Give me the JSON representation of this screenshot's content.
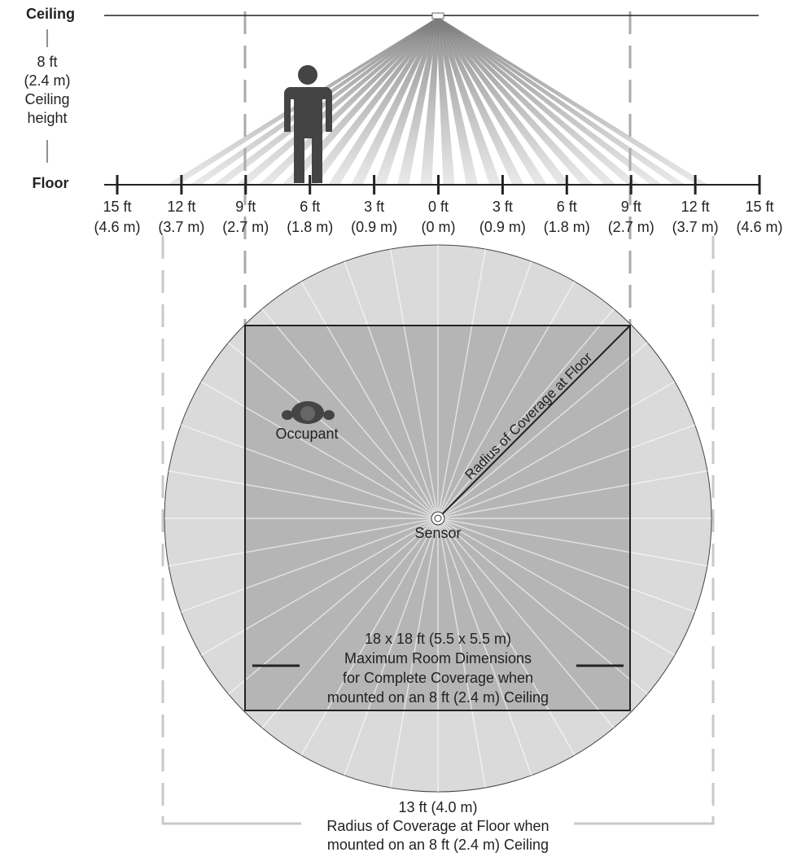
{
  "side": {
    "ceiling": "Ceiling",
    "height_ft": "8 ft",
    "height_m": "(2.4 m)",
    "height_l1": "Ceiling",
    "height_l2": "height",
    "floor": "Floor"
  },
  "scale": [
    [
      "15 ft",
      "(4.6 m)"
    ],
    [
      "12 ft",
      "(3.7 m)"
    ],
    [
      "9 ft",
      "(2.7 m)"
    ],
    [
      "6 ft",
      "(1.8 m)"
    ],
    [
      "3 ft",
      "(0.9 m)"
    ],
    [
      "0 ft",
      "(0 m)"
    ],
    [
      "3 ft",
      "(0.9 m)"
    ],
    [
      "6 ft",
      "(1.8 m)"
    ],
    [
      "9 ft",
      "(2.7 m)"
    ],
    [
      "12 ft",
      "(3.7 m)"
    ],
    [
      "15 ft",
      "(4.6 m)"
    ]
  ],
  "plan": {
    "occupant": "Occupant",
    "sensor": "Sensor",
    "radius": "Radius of Coverage at Floor",
    "room": [
      "18 x 18 ft (5.5 x 5.5 m)",
      "Maximum Room Dimensions",
      "for Complete Coverage when",
      "mounted on an 8 ft (2.4 m) Ceiling"
    ],
    "coverage": [
      "13 ft (4.0 m)",
      "Radius of Coverage at Floor when",
      "mounted on an 8 ft (2.4 m) Ceiling"
    ]
  }
}
